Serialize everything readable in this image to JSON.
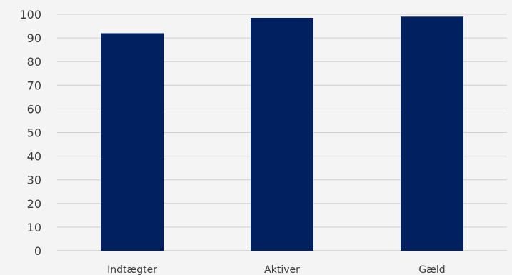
{
  "chart_data": {
    "type": "bar",
    "categories": [
      "Indtægter",
      "Aktiver",
      "Gæld"
    ],
    "values": [
      92,
      98.5,
      99
    ],
    "title": "",
    "xlabel": "",
    "ylabel": "",
    "ylim": [
      0,
      100
    ],
    "y_ticks": [
      0,
      10,
      20,
      30,
      40,
      50,
      60,
      70,
      80,
      90,
      100
    ],
    "grid": true,
    "legend": "none",
    "bar_color": "#002060",
    "grid_color": "#d0d0d0",
    "background_color": "#f4f4f4"
  }
}
